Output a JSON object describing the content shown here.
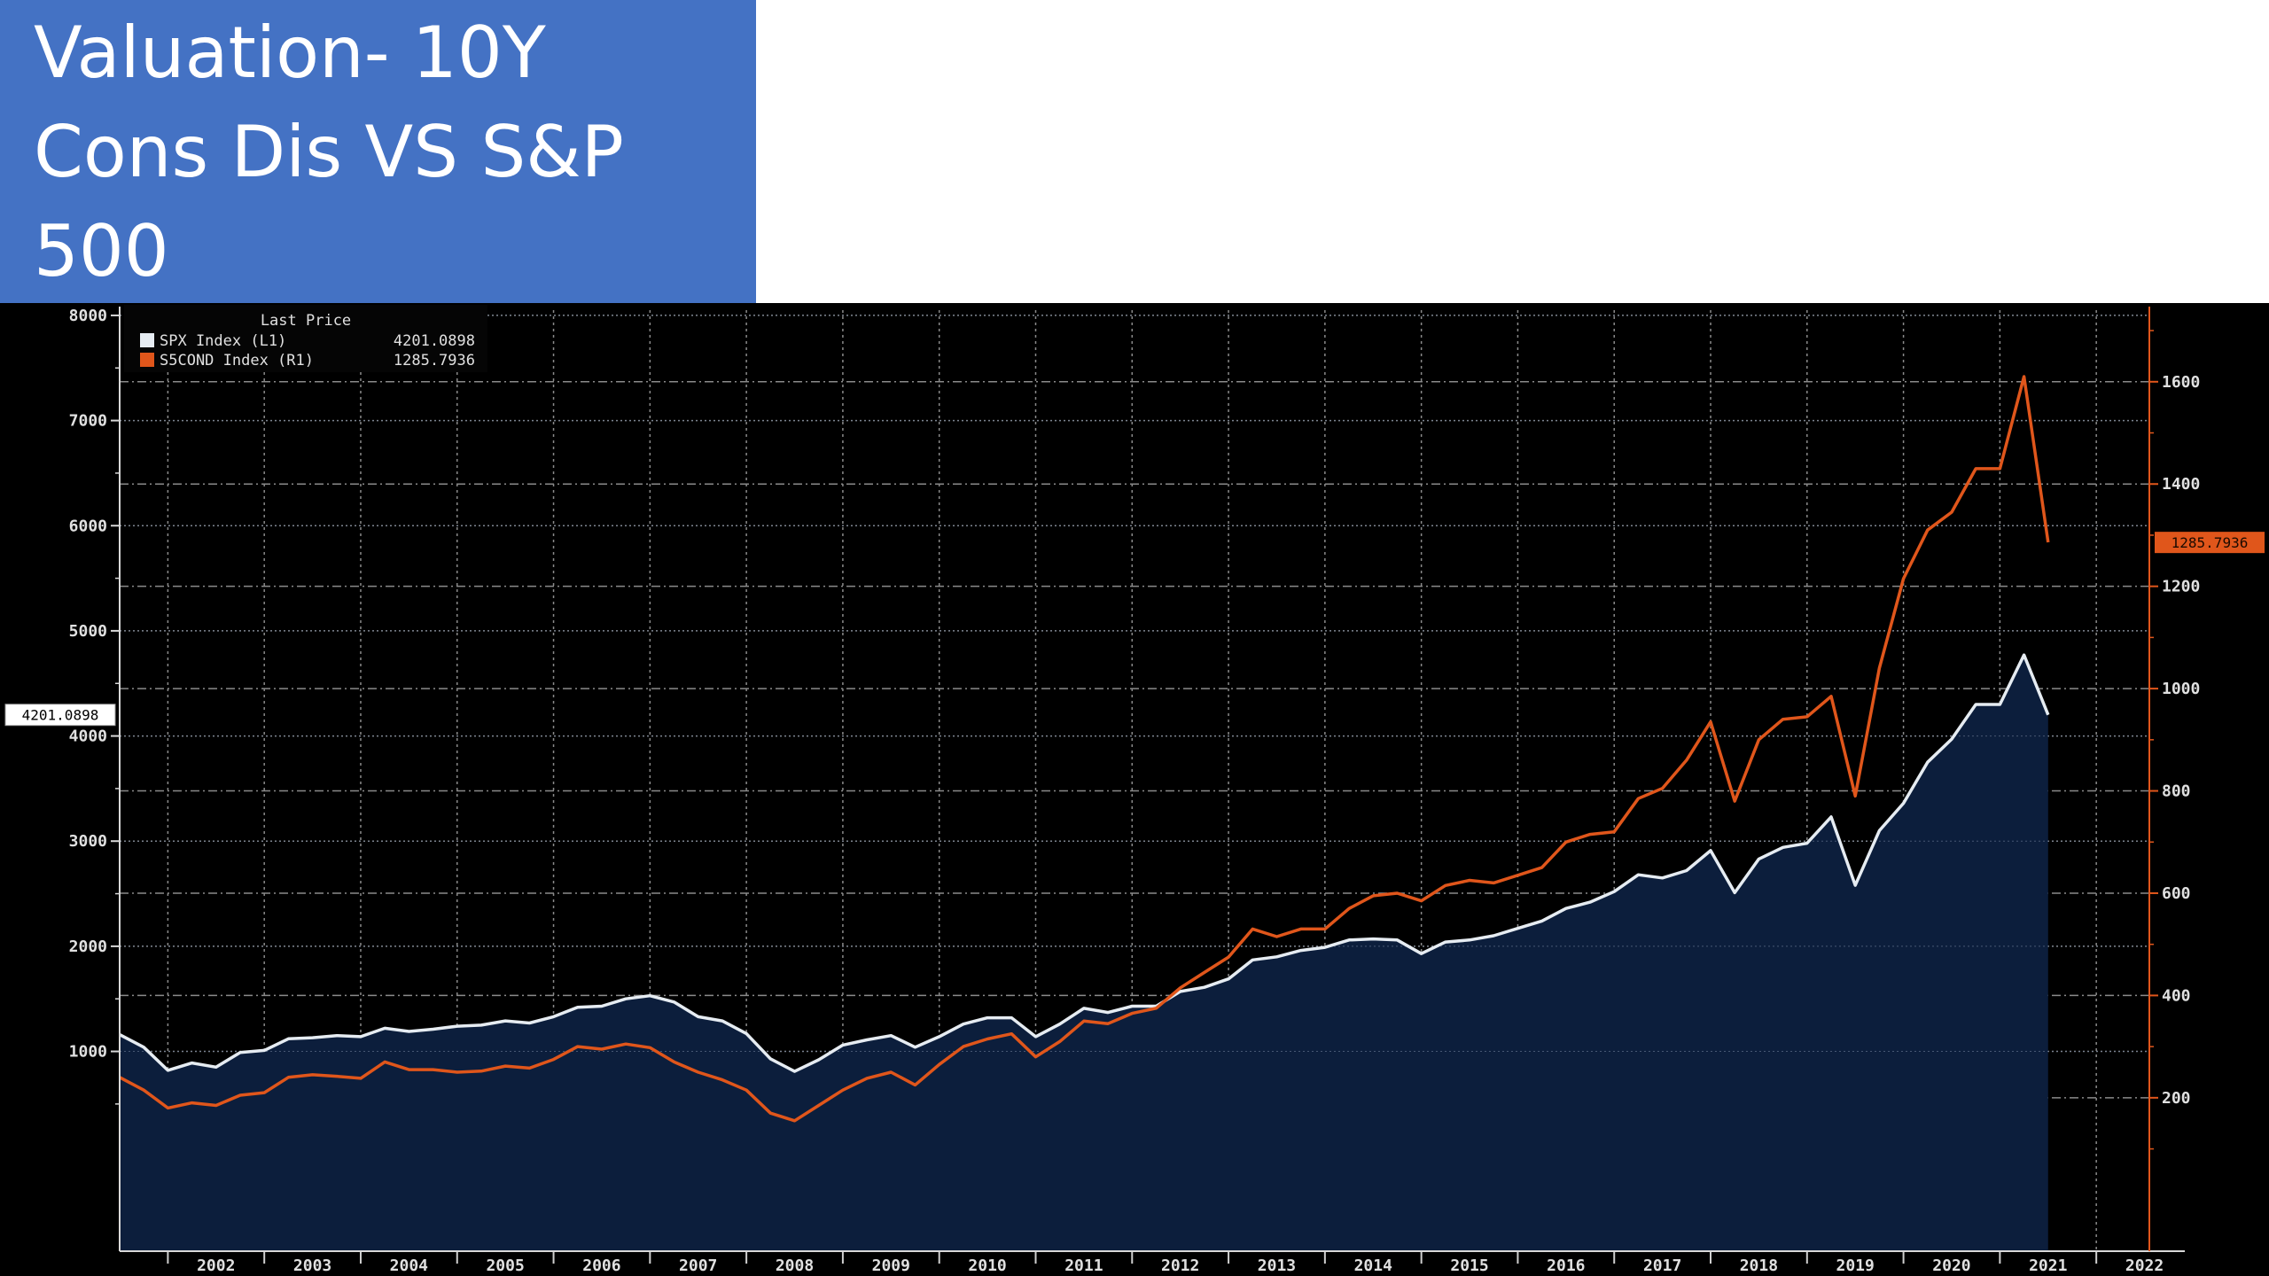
{
  "slide": {
    "title_lines": [
      "Valuation- 10Y",
      "Cons Dis VS S&P",
      "500"
    ]
  },
  "colors": {
    "title_bg": "#4472c4",
    "chart_bg": "#000000",
    "spx_line": "#e6ecf2",
    "spx_fill": "#0c1e3c",
    "cond_line": "#e0561b",
    "grid": "#8a8a8a"
  },
  "chart_data": {
    "type": "line",
    "title": "",
    "xlabel": "",
    "ylabel": "",
    "legend": {
      "position": "top-left",
      "header": "Last Price",
      "entries": [
        {
          "label": "SPX Index   (L1)",
          "value": "4201.0898"
        },
        {
          "label": "S5COND Index  (R1)",
          "value": "1285.7936"
        }
      ]
    },
    "grid": true,
    "x_range": [
      2001.5,
      2022.55
    ],
    "x_tick_labels": [
      "2002",
      "2003",
      "2004",
      "2005",
      "2006",
      "2007",
      "2008",
      "2009",
      "2010",
      "2011",
      "2012",
      "2013",
      "2014",
      "2015",
      "2016",
      "2017",
      "2018",
      "2019",
      "2020",
      "2021",
      "2022"
    ],
    "y_left": {
      "range": [
        -900,
        8050
      ],
      "ticks": [
        1000,
        2000,
        3000,
        4000,
        5000,
        6000,
        7000,
        8000
      ],
      "last_label": "4201.0898",
      "last_value": 4201.0898
    },
    "y_right": {
      "range": [
        -100,
        1740
      ],
      "ticks": [
        200,
        400,
        600,
        800,
        1000,
        1200,
        1400,
        1600
      ],
      "last_label": "1285.7936",
      "last_value": 1285.7936
    },
    "series": [
      {
        "name": "SPX Index",
        "axis": "left",
        "points": [
          [
            2001.5,
            1160
          ],
          [
            2001.75,
            1040
          ],
          [
            2002.0,
            820
          ],
          [
            2002.25,
            890
          ],
          [
            2002.5,
            850
          ],
          [
            2002.75,
            990
          ],
          [
            2003.0,
            1010
          ],
          [
            2003.25,
            1120
          ],
          [
            2003.5,
            1130
          ],
          [
            2003.75,
            1150
          ],
          [
            2004.0,
            1140
          ],
          [
            2004.25,
            1220
          ],
          [
            2004.5,
            1190
          ],
          [
            2004.75,
            1211
          ],
          [
            2005.0,
            1240
          ],
          [
            2005.25,
            1250
          ],
          [
            2005.5,
            1290
          ],
          [
            2005.75,
            1270
          ],
          [
            2006.0,
            1330
          ],
          [
            2006.25,
            1420
          ],
          [
            2006.5,
            1430
          ],
          [
            2006.75,
            1500
          ],
          [
            2007.0,
            1530
          ],
          [
            2007.25,
            1470
          ],
          [
            2007.5,
            1330
          ],
          [
            2007.75,
            1290
          ],
          [
            2008.0,
            1170
          ],
          [
            2008.25,
            930
          ],
          [
            2008.5,
            810
          ],
          [
            2008.75,
            920
          ],
          [
            2009.0,
            1060
          ],
          [
            2009.25,
            1110
          ],
          [
            2009.5,
            1150
          ],
          [
            2009.75,
            1040
          ],
          [
            2010.0,
            1140
          ],
          [
            2010.25,
            1260
          ],
          [
            2010.5,
            1320
          ],
          [
            2010.75,
            1320
          ],
          [
            2011.0,
            1140
          ],
          [
            2011.25,
            1260
          ],
          [
            2011.5,
            1410
          ],
          [
            2011.75,
            1370
          ],
          [
            2012.0,
            1430
          ],
          [
            2012.25,
            1430
          ],
          [
            2012.5,
            1570
          ],
          [
            2012.75,
            1610
          ],
          [
            2013.0,
            1690
          ],
          [
            2013.25,
            1870
          ],
          [
            2013.5,
            1900
          ],
          [
            2013.75,
            1960
          ],
          [
            2014.0,
            1990
          ],
          [
            2014.25,
            2060
          ],
          [
            2014.5,
            2070
          ],
          [
            2014.75,
            2060
          ],
          [
            2015.0,
            1930
          ],
          [
            2015.25,
            2040
          ],
          [
            2015.5,
            2060
          ],
          [
            2015.75,
            2100
          ],
          [
            2016.0,
            2170
          ],
          [
            2016.25,
            2240
          ],
          [
            2016.5,
            2360
          ],
          [
            2016.75,
            2420
          ],
          [
            2017.0,
            2520
          ],
          [
            2017.25,
            2680
          ],
          [
            2017.5,
            2650
          ],
          [
            2017.75,
            2720
          ],
          [
            2018.0,
            2910
          ],
          [
            2018.25,
            2510
          ],
          [
            2018.5,
            2830
          ],
          [
            2018.75,
            2940
          ],
          [
            2019.0,
            2980
          ],
          [
            2019.25,
            3230
          ],
          [
            2019.5,
            2580
          ],
          [
            2019.75,
            3100
          ],
          [
            2020.0,
            3360
          ],
          [
            2020.25,
            3750
          ],
          [
            2020.5,
            3970
          ],
          [
            2020.75,
            4300
          ],
          [
            2021.0,
            4300
          ],
          [
            2021.25,
            4770
          ],
          [
            2021.5,
            4201
          ]
        ]
      },
      {
        "name": "S5COND Index",
        "axis": "right",
        "points": [
          [
            2001.5,
            240
          ],
          [
            2001.75,
            215
          ],
          [
            2002.0,
            180
          ],
          [
            2002.25,
            190
          ],
          [
            2002.5,
            185
          ],
          [
            2002.75,
            205
          ],
          [
            2003.0,
            210
          ],
          [
            2003.25,
            240
          ],
          [
            2003.5,
            245
          ],
          [
            2003.75,
            242
          ],
          [
            2004.0,
            238
          ],
          [
            2004.25,
            270
          ],
          [
            2004.5,
            255
          ],
          [
            2004.75,
            255
          ],
          [
            2005.0,
            250
          ],
          [
            2005.25,
            252
          ],
          [
            2005.5,
            262
          ],
          [
            2005.75,
            258
          ],
          [
            2006.0,
            275
          ],
          [
            2006.25,
            300
          ],
          [
            2006.5,
            295
          ],
          [
            2006.75,
            305
          ],
          [
            2007.0,
            298
          ],
          [
            2007.25,
            270
          ],
          [
            2007.5,
            250
          ],
          [
            2007.75,
            235
          ],
          [
            2008.0,
            215
          ],
          [
            2008.25,
            170
          ],
          [
            2008.5,
            155
          ],
          [
            2008.75,
            185
          ],
          [
            2009.0,
            215
          ],
          [
            2009.25,
            238
          ],
          [
            2009.5,
            250
          ],
          [
            2009.75,
            225
          ],
          [
            2010.0,
            265
          ],
          [
            2010.25,
            300
          ],
          [
            2010.5,
            315
          ],
          [
            2010.75,
            325
          ],
          [
            2011.0,
            280
          ],
          [
            2011.25,
            310
          ],
          [
            2011.5,
            350
          ],
          [
            2011.75,
            345
          ],
          [
            2012.0,
            365
          ],
          [
            2012.25,
            375
          ],
          [
            2012.5,
            415
          ],
          [
            2012.75,
            445
          ],
          [
            2013.0,
            475
          ],
          [
            2013.25,
            530
          ],
          [
            2013.5,
            515
          ],
          [
            2013.75,
            530
          ],
          [
            2014.0,
            530
          ],
          [
            2014.25,
            570
          ],
          [
            2014.5,
            595
          ],
          [
            2014.75,
            600
          ],
          [
            2015.0,
            585
          ],
          [
            2015.25,
            615
          ],
          [
            2015.5,
            625
          ],
          [
            2015.75,
            620
          ],
          [
            2016.0,
            635
          ],
          [
            2016.25,
            650
          ],
          [
            2016.5,
            700
          ],
          [
            2016.75,
            715
          ],
          [
            2017.0,
            720
          ],
          [
            2017.25,
            785
          ],
          [
            2017.5,
            805
          ],
          [
            2017.75,
            860
          ],
          [
            2018.0,
            935
          ],
          [
            2018.25,
            780
          ],
          [
            2018.5,
            900
          ],
          [
            2018.75,
            940
          ],
          [
            2019.0,
            945
          ],
          [
            2019.25,
            985
          ],
          [
            2019.5,
            790
          ],
          [
            2019.75,
            1040
          ],
          [
            2020.0,
            1215
          ],
          [
            2020.25,
            1310
          ],
          [
            2020.5,
            1345
          ],
          [
            2020.75,
            1430
          ],
          [
            2021.0,
            1430
          ],
          [
            2021.25,
            1610
          ],
          [
            2021.5,
            1286
          ]
        ]
      }
    ]
  }
}
